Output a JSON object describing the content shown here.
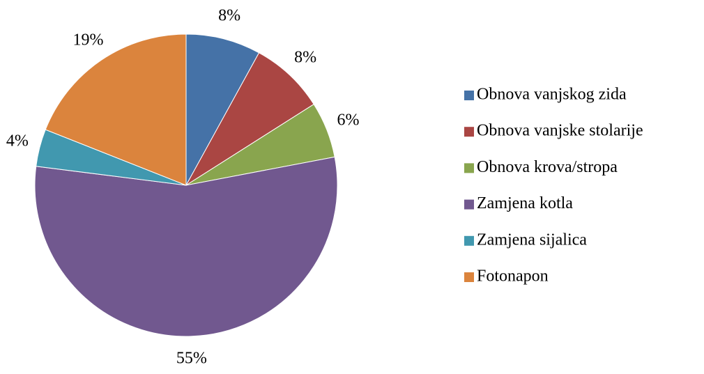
{
  "chart_data": {
    "type": "pie",
    "categories": [
      "Obnova vanjskog zida",
      "Obnova vanjske stolarije",
      "Obnova krova/stropa",
      "Zamjena kotla",
      "Zamjena sijalica",
      "Fotonapon"
    ],
    "values": [
      8,
      8,
      6,
      55,
      4,
      19
    ],
    "value_labels": [
      "8%",
      "8%",
      "6%",
      "55%",
      "4%",
      "19%"
    ],
    "colors": [
      "#4572a7",
      "#aa4643",
      "#89a54e",
      "#71588f",
      "#4198af",
      "#db843d"
    ],
    "legend": "right"
  }
}
